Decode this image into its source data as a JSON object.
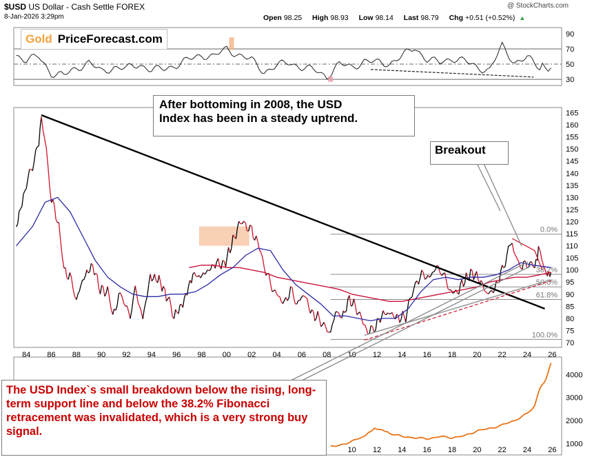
{
  "header": {
    "symbol": "$USD",
    "name": "US Dollar - Cash Settle",
    "exchange": "FOREX",
    "date": "8-Jan-2026 3:29pm",
    "credit": "@ StockCharts.com",
    "open_label": "Open",
    "open": "98.25",
    "high_label": "High",
    "high": "98.93",
    "low_label": "Low",
    "low": "98.14",
    "last_label": "Last",
    "last": "98.79",
    "chg_label": "Chg",
    "chg": "+0.51 (+0.52%)",
    "up_color": "#2e9e3e"
  },
  "brand": {
    "gold": "Gold",
    "rest": "PriceForecast.com",
    "gold_color": "#f2a23a"
  },
  "annotations": {
    "top": [
      "After bottoming in 2008, the USD",
      "Index has been in a steady uptrend."
    ],
    "breakout": "Breakout",
    "bottom": "The USD Index`s small breakdown below the rising, long-term support line and below the 38.2% Fibonacci retracement was invalidated, which is a very strong buy signal."
  },
  "colors": {
    "price_up": "#000000",
    "price_down": "#d0102a",
    "ma_short": "#2b2ba8",
    "ma_long": "#c8143c",
    "panel3_line": "#e87418",
    "highlight": "#f4b183"
  },
  "chart_data": [
    {
      "type": "line",
      "panel": "indicator",
      "y_ticks": [
        30,
        50,
        70,
        90
      ],
      "ylim": [
        22,
        98
      ],
      "reference_lines": [
        30,
        50,
        70
      ],
      "x": [
        1983.2,
        1984,
        1985,
        1986,
        1987,
        1988,
        1989,
        1990,
        1991,
        1992,
        1993,
        1994,
        1995,
        1996,
        1997,
        1998,
        1999,
        2000,
        2001,
        2002,
        2003,
        2004,
        2005,
        2006,
        2007,
        2008,
        2009,
        2010,
        2011,
        2012,
        2013,
        2014,
        2015,
        2016,
        2017,
        2018,
        2019,
        2020,
        2021,
        2022,
        2023,
        2024,
        2025,
        2025.9
      ],
      "values": [
        62,
        55,
        60,
        38,
        35,
        45,
        52,
        40,
        46,
        44,
        50,
        42,
        44,
        49,
        56,
        62,
        60,
        70,
        62,
        55,
        40,
        48,
        52,
        46,
        42,
        34,
        50,
        46,
        54,
        52,
        51,
        60,
        72,
        56,
        52,
        58,
        54,
        46,
        42,
        74,
        52,
        58,
        46,
        45
      ]
    },
    {
      "type": "line",
      "panel": "price",
      "title": "$USD US Dollar - Cash Settle FOREX",
      "y_ticks": [
        70,
        75,
        80,
        85,
        90,
        95,
        100,
        105,
        110,
        115,
        120,
        125,
        130,
        135,
        140,
        145,
        150,
        155,
        160,
        165
      ],
      "ylim": [
        68,
        166
      ],
      "x_ticks": [
        "84",
        "86",
        "88",
        "90",
        "92",
        "94",
        "96",
        "98",
        "00",
        "02",
        "04",
        "06",
        "08",
        "10",
        "12",
        "14",
        "16",
        "18",
        "20",
        "22",
        "24",
        "26"
      ],
      "fibonacci": [
        {
          "label": "0.0%",
          "value": 114.8
        },
        {
          "label": "38.2%",
          "value": 98.2
        },
        {
          "label": "50.0%",
          "value": 93.0
        },
        {
          "label": "61.8%",
          "value": 87.8
        },
        {
          "label": "100.0%",
          "value": 71.3
        }
      ],
      "series": [
        {
          "key": "price",
          "x": [
            1983.2,
            1984,
            1985,
            1985.2,
            1985.6,
            1986,
            1986.6,
            1987,
            1987.6,
            1988,
            1988.6,
            1989.3,
            1989.9,
            1990.5,
            1990.9,
            1991.5,
            1991.8,
            1992.3,
            1992.7,
            1993.3,
            1993.9,
            1994.6,
            1995.3,
            1995.8,
            1996.5,
            1997.3,
            1997.8,
            1998.6,
            1999.2,
            1999.8,
            2000.5,
            2001.1,
            2001.5,
            2002,
            2002.6,
            2003,
            2003.5,
            2004,
            2004.6,
            2005.1,
            2005.6,
            2006.2,
            2006.8,
            2007.4,
            2007.9,
            2008.3,
            2008.7,
            2009.2,
            2009.8,
            2010.4,
            2010.9,
            2011.4,
            2011.9,
            2012.5,
            2013.1,
            2013.7,
            2014.3,
            2014.8,
            2015.2,
            2015.7,
            2016.2,
            2016.9,
            2017.3,
            2017.8,
            2018.3,
            2018.9,
            2019.6,
            2020.2,
            2020.8,
            2021.4,
            2022.0,
            2022.5,
            2022.8,
            2023.2,
            2023.6,
            2024.1,
            2024.6,
            2024.9,
            2025.3,
            2025.6,
            2025.9
          ],
          "values": [
            118,
            135,
            152,
            164,
            150,
            130,
            118,
            100,
            96,
            88,
            97,
            102,
            92,
            91,
            81,
            90,
            86,
            82,
            92,
            80,
            97,
            96,
            88,
            81,
            86,
            98,
            97,
            100,
            103,
            102,
            112,
            120,
            119,
            116,
            110,
            102,
            94,
            90,
            86,
            92,
            86,
            90,
            82,
            80,
            76,
            72,
            84,
            80,
            88,
            84,
            78,
            74,
            77,
            82,
            82,
            80,
            81,
            90,
            96,
            98,
            97,
            102,
            98,
            92,
            90,
            95,
            99,
            96,
            90,
            92,
            100,
            108,
            113,
            104,
            101,
            103,
            101,
            108,
            102,
            98,
            99
          ]
        },
        {
          "key": "ma_short",
          "x": [
            1983.2,
            1984.5,
            1985.5,
            1986.5,
            1987.5,
            1988.5,
            1989.5,
            1990.5,
            1991.5,
            1992.5,
            1993.5,
            1994.5,
            1995.5,
            1996.5,
            1997.5,
            1998.5,
            1999.5,
            2000.5,
            2001.5,
            2002.5,
            2003.5,
            2004.5,
            2005.5,
            2006.5,
            2007.5,
            2008.5,
            2009.5,
            2010.5,
            2011.5,
            2012.5,
            2013.5,
            2014.5,
            2015.5,
            2016.5,
            2017.5,
            2018.5,
            2019.5,
            2020.5,
            2021.5,
            2022.5,
            2023.5,
            2024.5,
            2025.9
          ],
          "values": [
            110,
            118,
            128,
            130,
            124,
            114,
            104,
            97,
            93,
            90,
            89,
            89,
            90,
            90,
            91,
            94,
            98,
            101,
            106,
            109,
            108,
            100,
            94,
            90,
            86,
            81,
            81,
            80,
            79,
            80,
            80,
            84,
            91,
            96,
            97,
            96,
            97,
            97,
            98,
            100,
            103,
            102,
            101
          ]
        },
        {
          "key": "ma_long",
          "x": [
            1997,
            1998,
            1999,
            2000,
            2001,
            2002,
            2003,
            2004,
            2005,
            2006,
            2007,
            2008,
            2009,
            2010,
            2011,
            2012,
            2013,
            2014,
            2015,
            2016,
            2017,
            2018,
            2019,
            2020,
            2021,
            2022,
            2023,
            2024,
            2025,
            2025.9
          ],
          "values": [
            101,
            102,
            102,
            101,
            101,
            100,
            99,
            97,
            96,
            95,
            94,
            93,
            92,
            90,
            89,
            88,
            87,
            87,
            88,
            89,
            90,
            91,
            92,
            93,
            95,
            96,
            97,
            97,
            98,
            99
          ]
        },
        {
          "key": "resistance_line",
          "x": [
            1985.2,
            2025.4
          ],
          "values": [
            164,
            84
          ]
        },
        {
          "key": "support_line",
          "x": [
            2011.0,
            2025.9
          ],
          "values": [
            73,
            96
          ]
        },
        {
          "key": "support_line_dashed",
          "x": [
            2011.0,
            2025.9
          ],
          "values": [
            71,
            95.5
          ]
        }
      ]
    },
    {
      "type": "line",
      "panel": "lower",
      "y_ticks": [
        1000,
        2000,
        3000,
        4000
      ],
      "ylim": [
        500,
        4700
      ],
      "x_ticks": [
        "10",
        "12",
        "14",
        "16",
        "18",
        "20",
        "22",
        "24",
        "26"
      ],
      "x": [
        2008.3,
        2009,
        2010,
        2011,
        2011.8,
        2012.5,
        2013,
        2014,
        2015,
        2016,
        2017,
        2018,
        2019,
        2020,
        2021,
        2022,
        2023,
        2024,
        2024.6,
        2025,
        2025.5,
        2025.9
      ],
      "values": [
        850,
        900,
        1100,
        1300,
        1650,
        1550,
        1450,
        1300,
        1250,
        1200,
        1300,
        1250,
        1330,
        1550,
        1650,
        1800,
        2000,
        2300,
        2650,
        3400,
        3800,
        4500
      ]
    }
  ]
}
